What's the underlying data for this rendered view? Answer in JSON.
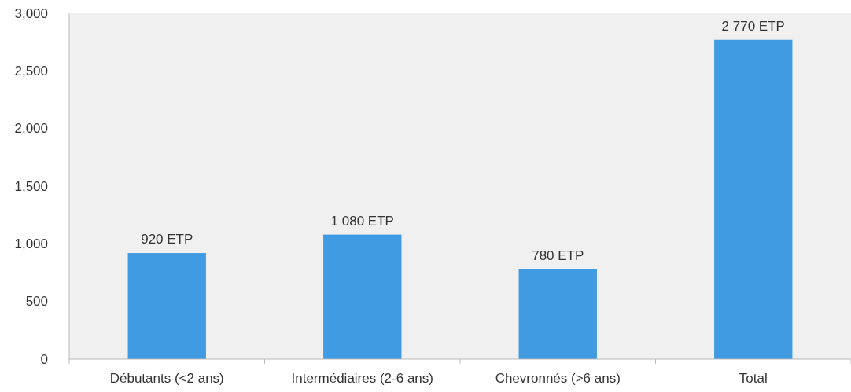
{
  "chart_data": {
    "type": "bar",
    "categories": [
      "Débutants (<2 ans)",
      "Intermédiaires (2-6 ans)",
      "Chevronnés (>6 ans)",
      "Total"
    ],
    "values": [
      920,
      1080,
      780,
      2770
    ],
    "value_labels": [
      "920 ETP",
      "1 080 ETP",
      "780 ETP",
      "2 770 ETP"
    ],
    "color": "#419be3",
    "ylim": [
      0,
      3000
    ],
    "yticks": [
      0,
      {
        "value": 500,
        "label": "500"
      },
      {
        "value": 1000,
        "label": "1,000"
      },
      {
        "value": 1500,
        "label": "1,500"
      },
      {
        "value": 2000,
        "label": "2,000"
      },
      {
        "value": 2500,
        "label": "2,500"
      },
      {
        "value": 3000,
        "label": "3,000"
      }
    ],
    "grid": false
  }
}
